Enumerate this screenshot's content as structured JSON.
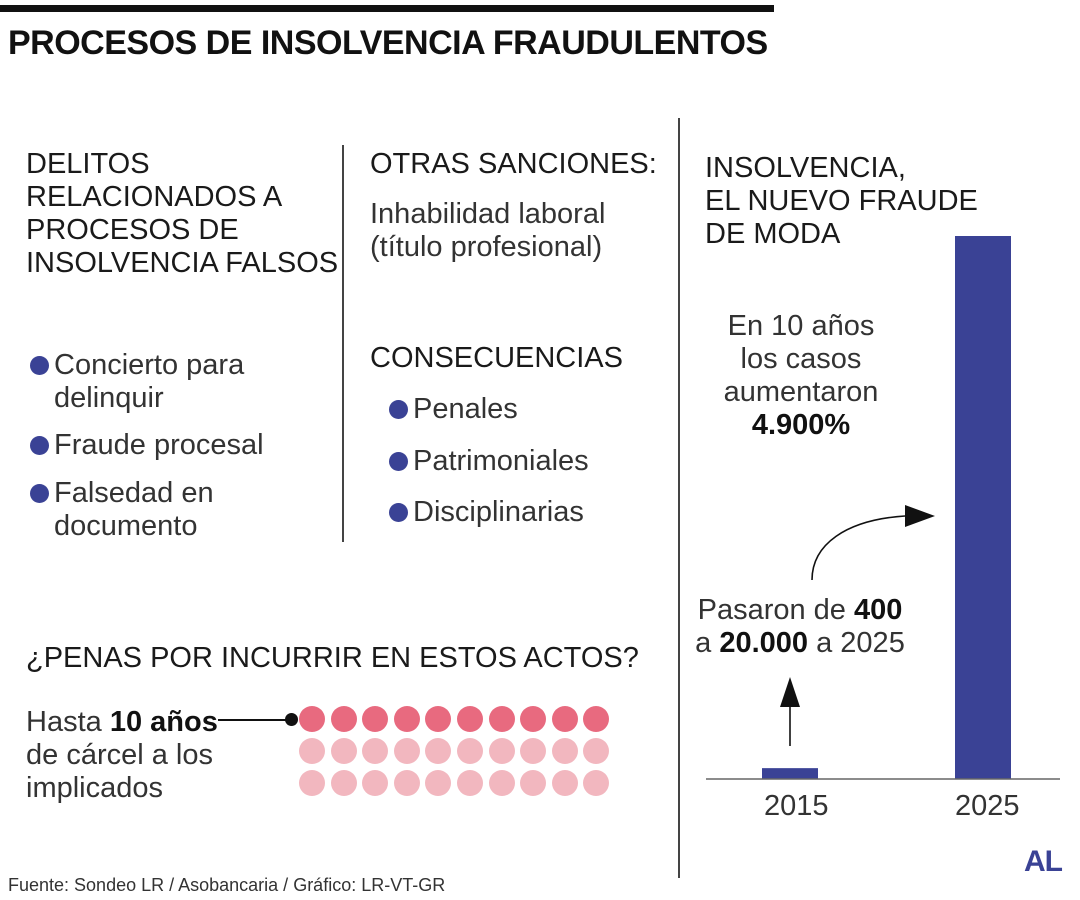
{
  "title": "PROCESOS DE INSOLVENCIA FRAUDULENTOS",
  "delitos": {
    "heading": [
      "DELITOS",
      "RELACIONADOS A",
      "PROCESOS DE",
      "INSOLVENCIA FALSOS"
    ],
    "items": [
      {
        "lines": [
          "Concierto para",
          "delinquir"
        ]
      },
      {
        "lines": [
          "Fraude procesal"
        ]
      },
      {
        "lines": [
          "Falsedad en",
          "documento"
        ]
      }
    ]
  },
  "otras_sanciones": {
    "heading": "OTRAS SANCIONES:",
    "text": [
      "Inhabilidad laboral",
      "(título profesional)"
    ]
  },
  "consecuencias": {
    "heading": "CONSECUENCIAS",
    "items": [
      "Penales",
      "Patrimoniales",
      "Disciplinarias"
    ]
  },
  "penas": {
    "heading": "¿PENAS POR INCURRIR EN ESTOS ACTOS?",
    "line1_pre": "Hasta ",
    "line1_bold": "10 años",
    "line2": "de cárcel a los",
    "line3": "implicados",
    "years": 10,
    "grid_rows": 3,
    "grid_cols": 10
  },
  "chart_title": [
    "INSOLVENCIA,",
    "EL NUEVO FRAUDE",
    "DE MODA"
  ],
  "annotation_top": {
    "line1": "En 10 años",
    "line2": "los casos",
    "line3": "aumentaron",
    "value": "4.900%"
  },
  "annotation_mid": {
    "l1_pre": "Pasaron de ",
    "l1_bold": "400",
    "l2_pre": "a ",
    "l2_bold": "20.000",
    "l2_post": " a 2025"
  },
  "source": "Fuente: Sondeo LR / Asobancaria / Gráfico: LR-VT-GR",
  "logo": "AL",
  "colors": {
    "accent": "#3a4295",
    "dot_dark": "#e86a7f",
    "dot_light": "#f2b7bf",
    "text": "#333333"
  },
  "chart_data": {
    "type": "bar",
    "categories": [
      "2015",
      "2025"
    ],
    "values": [
      400,
      20000
    ],
    "title": "INSOLVENCIA, EL NUEVO FRAUDE DE MODA",
    "xlabel": "",
    "ylabel": "",
    "ylim": [
      0,
      20000
    ],
    "color": "#3a4295",
    "grid": false
  }
}
